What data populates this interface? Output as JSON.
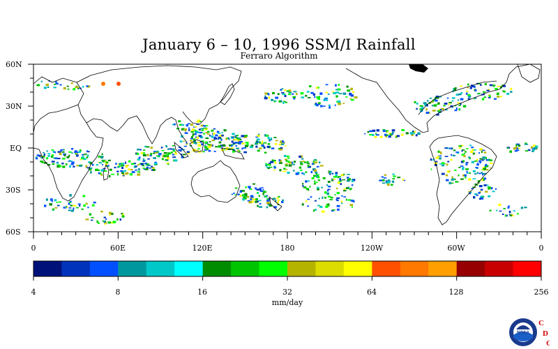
{
  "title": "January 6 – 10, 1996 SSM/I Rainfall",
  "subtitle": "Ferraro Algorithm",
  "map": {
    "lat_labels": [
      "60N",
      "30N",
      "EQ",
      "30S",
      "60S"
    ],
    "lon_labels": [
      "0",
      "60E",
      "120E",
      "180",
      "120W",
      "60W",
      "0"
    ]
  },
  "colorbar": {
    "unit_label": "mm/day",
    "tick_labels": [
      "4",
      "8",
      "16",
      "32",
      "64",
      "128",
      "256"
    ],
    "colors": [
      "#00127a",
      "#0033bb",
      "#0050ff",
      "#00989e",
      "#00c8c8",
      "#00ffff",
      "#008c00",
      "#00c400",
      "#00ff00",
      "#b4b400",
      "#dcdc00",
      "#ffff00",
      "#ff5000",
      "#ff7800",
      "#ffa000",
      "#960000",
      "#c80000",
      "#ff0000"
    ]
  },
  "logo": {
    "org_text": "NOAA",
    "letters": [
      "C",
      "D",
      "C"
    ]
  }
}
